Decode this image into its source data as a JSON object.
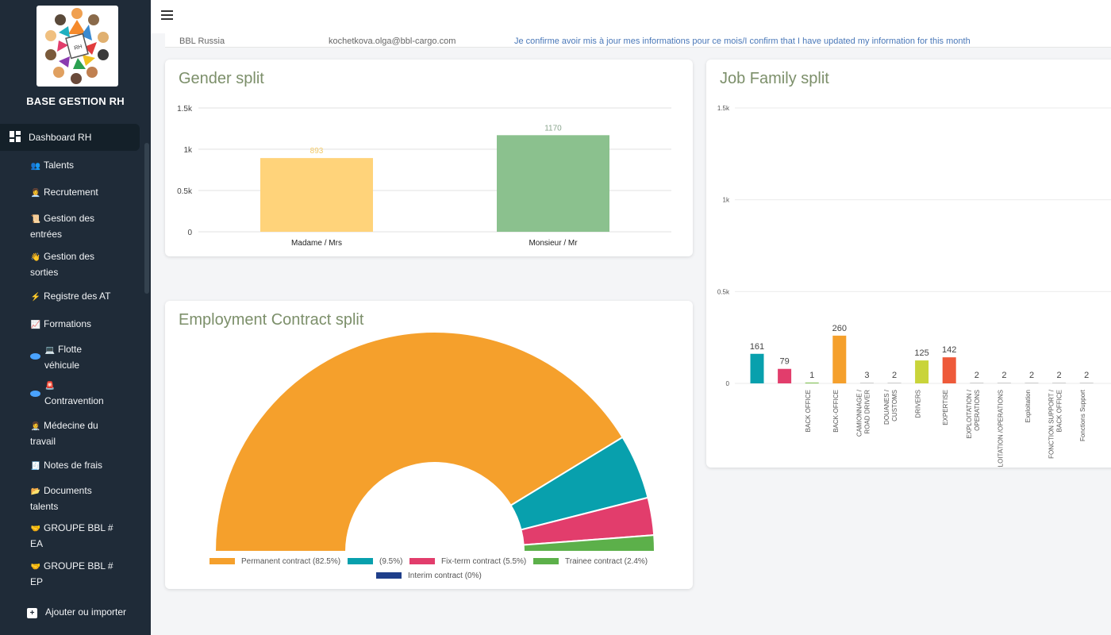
{
  "app": {
    "brand": "BASE GESTION RH"
  },
  "sidebar": {
    "items": [
      {
        "label": "Dashboard RH",
        "icon": "dashboard-icon"
      },
      {
        "label": "Talents",
        "icon": "people-icon",
        "glyph": "👥"
      },
      {
        "label": "Recrutement",
        "icon": "recruiter-icon",
        "glyph": "👩‍💼"
      },
      {
        "label": "Gestion des entrées",
        "icon": "scroll-icon",
        "glyph": "📜"
      },
      {
        "label": "Gestion des sorties",
        "icon": "wave-icon",
        "glyph": "👋"
      },
      {
        "label": "Registre des AT",
        "icon": "lightning-icon",
        "glyph": "⚡"
      },
      {
        "label": "Formations",
        "icon": "chart-icon",
        "glyph": "📈"
      },
      {
        "label": "Flotte véhicule",
        "icon": "laptop-icon",
        "glyph": "💻"
      },
      {
        "label": "Contravention",
        "icon": "siren-icon",
        "glyph": "🚨"
      },
      {
        "label": "Médecine du travail",
        "icon": "doctor-icon",
        "glyph": "👩‍⚕️"
      },
      {
        "label": "Notes de frais",
        "icon": "receipt-icon",
        "glyph": "🧾"
      },
      {
        "label": "Documents talents",
        "icon": "folder-icon",
        "glyph": "📂"
      },
      {
        "label": "GROUPE BBL # EA",
        "icon": "handshake-icon",
        "glyph": "🤝"
      },
      {
        "label": "GROUPE BBL # EP",
        "icon": "handshake-icon",
        "glyph": "🤝"
      },
      {
        "label": "Ajouter ou importer",
        "icon": "plus-icon",
        "glyph": "+"
      }
    ]
  },
  "behind_row": {
    "entity": "BBL Russia",
    "email": "kochetkova.olga@bbl-cargo.com",
    "message": "Je confirme avoir mis à jour mes informations pour ce mois/I confirm that I have updated my information for this month"
  },
  "colors": {
    "sidebar_bg": "#1f2b38",
    "title": "#7c8f6a",
    "orange": "#f5a02c",
    "teal": "#08a0ad",
    "pink": "#e23d6c",
    "green": "#5cb04a",
    "navy": "#1f3f8a"
  },
  "chart_data": [
    {
      "type": "bar",
      "title": "Gender split",
      "categories": [
        "Madame / Mrs",
        "Monsieur / Mr"
      ],
      "values": [
        893,
        1170
      ],
      "value_labels": [
        "893",
        "1170"
      ],
      "colors": [
        "#ffd37a",
        "#8bc18e"
      ],
      "ylim": [
        0,
        1500
      ],
      "yticks": [
        0,
        500,
        1000,
        1500
      ],
      "ytick_labels": [
        "0",
        "0.5k",
        "1k",
        "1.5k"
      ],
      "grid": true
    },
    {
      "type": "bar",
      "title": "Job Family split",
      "categories": [
        "",
        "",
        "BACK OFFICE",
        "BACK-OFFICE",
        "CAMIONNAGE / ROAD DRIVER",
        "DOUANES / CUSTOMS",
        "DRIVERS",
        "EXPERTISE",
        "EXPLOITATION / OPERATIONS",
        "EXPLOITATION /OPERATIONS",
        "Exploitation",
        "FONCTION SUPPORT / BACK OFFICE",
        "Fonctions Support"
      ],
      "values": [
        161,
        79,
        1,
        260,
        3,
        2,
        125,
        142,
        2,
        2,
        2,
        2,
        2
      ],
      "value_labels": [
        "161",
        "79",
        "1",
        "260",
        "3",
        "2",
        "125",
        "142",
        "2",
        "2",
        "2",
        "2",
        "2"
      ],
      "colors": [
        "#08a0ad",
        "#e23d6c",
        "#7bbf4b",
        "#f5a02c",
        "#cccccc",
        "#cccccc",
        "#c9d43a",
        "#ee5a3a",
        "#cccccc",
        "#cccccc",
        "#cccccc",
        "#cccccc",
        "#cccccc"
      ],
      "ylim": [
        0,
        1500
      ],
      "yticks": [
        0,
        500,
        1000,
        1500
      ],
      "ytick_labels": [
        "0",
        "0.5k",
        "1k",
        "1.5k"
      ],
      "grid": true
    },
    {
      "type": "pie",
      "variant": "semi-donut",
      "title": "Employment Contract split",
      "slices": [
        {
          "label": "Permanent contract (82.5%)",
          "value": 82.5,
          "color": "#f5a02c"
        },
        {
          "label": "(9.5%)",
          "value": 9.5,
          "color": "#08a0ad"
        },
        {
          "label": "Fix-term contract (5.5%)",
          "value": 5.5,
          "color": "#e23d6c"
        },
        {
          "label": "Trainee contract (2.4%)",
          "value": 2.4,
          "color": "#5cb04a"
        },
        {
          "label": "Interim contract (0%)",
          "value": 0,
          "color": "#1f3f8a"
        }
      ],
      "legend": "bottom"
    }
  ]
}
